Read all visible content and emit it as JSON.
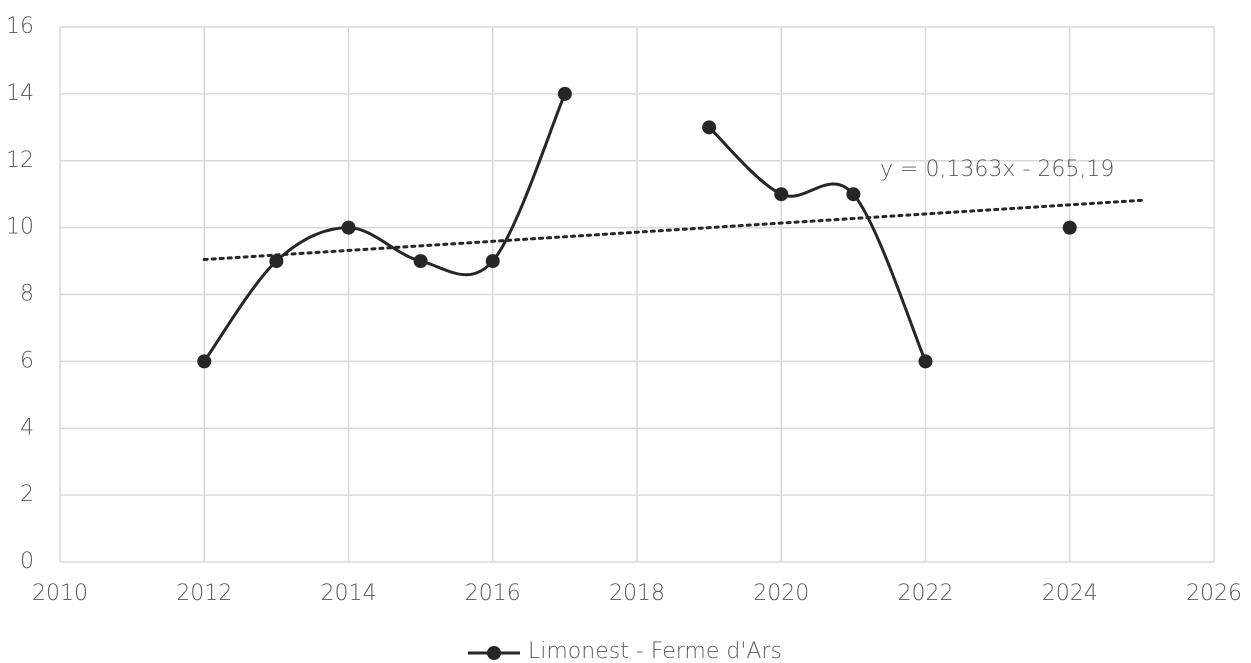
{
  "chart_data": {
    "type": "line",
    "x": [
      2012,
      2013,
      2014,
      2015,
      2016,
      2017,
      2018,
      2019,
      2020,
      2021,
      2022,
      2023,
      2024
    ],
    "series": [
      {
        "name": "Limonest - Ferme d'Ars",
        "color": "#262626",
        "values": [
          6,
          9,
          10,
          9,
          9,
          14,
          null,
          13,
          11,
          11,
          6,
          null,
          10
        ]
      }
    ],
    "smooth": true,
    "trendline": {
      "label": "y = 0,1363x - 265,19",
      "slope": 0.1363,
      "intercept": -265.19,
      "xlim": [
        2012,
        2025
      ]
    },
    "xlim": [
      2010,
      2026
    ],
    "xticks": [
      2010,
      2012,
      2014,
      2016,
      2018,
      2020,
      2022,
      2024,
      2026
    ],
    "ylim": [
      0,
      16
    ],
    "yticks": [
      0,
      2,
      4,
      6,
      8,
      10,
      12,
      14,
      16
    ],
    "grid": true,
    "legend": "bottom"
  }
}
